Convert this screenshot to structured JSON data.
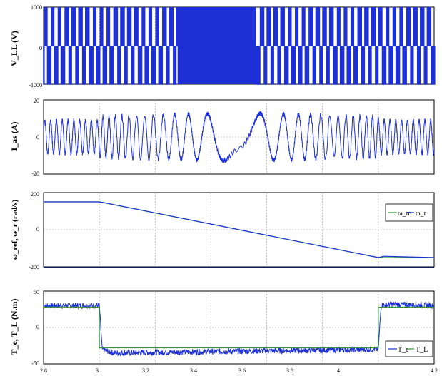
{
  "figure": {
    "colors": {
      "signal": "#1d2fd6",
      "reference": "#2e9a3a",
      "grid": "#9a9a9a",
      "frame": "#000000"
    }
  },
  "chart_data": [
    {
      "type": "line",
      "ylabel": "V_LL (V)",
      "ylim": [
        -1000,
        1000
      ],
      "yticks": [
        "1000",
        "0",
        "-1000"
      ],
      "xlim": [
        2.8,
        4.2
      ],
      "grid": true,
      "series": [
        {
          "description": "PWM line-to-line voltage, switching between -1000 and +1000 V; dense switching band around t=3.3-3.55 s"
        }
      ]
    },
    {
      "type": "line",
      "ylabel": "I_as (A)",
      "ylim": [
        -20,
        20
      ],
      "yticks": [
        "20",
        "0",
        "-20"
      ],
      "xlim": [
        2.8,
        4.2
      ],
      "grid": true,
      "series": [
        {
          "segments": [
            {
              "t": [
                2.8,
                3.0
              ],
              "amplitude": 9,
              "freq": 48
            },
            {
              "t": [
                3.0,
                3.5
              ],
              "amplitude_from": 11,
              "amplitude_to": 13,
              "freq_from": 48,
              "freq_to": 0
            },
            {
              "t": [
                3.5,
                4.0
              ],
              "amplitude_from": 13,
              "amplitude_to": 11,
              "freq_from": 0,
              "freq_to": 48
            },
            {
              "t": [
                4.0,
                4.2
              ],
              "amplitude": 9,
              "freq": 48
            }
          ]
        }
      ]
    },
    {
      "type": "line",
      "ylabel": "ω_ref, ω_r (rad/s)",
      "ylim": [
        -200,
        200
      ],
      "yticks": [
        "200",
        "0",
        "-200"
      ],
      "xlim": [
        2.8,
        4.2
      ],
      "grid": true,
      "legend": [
        "ω_m",
        "ω_r"
      ],
      "legend_position": "right",
      "series": [
        {
          "name": "ω_m",
          "x": [
            2.8,
            3.0,
            4.0,
            4.2
          ],
          "y": [
            150,
            150,
            -150,
            -150
          ]
        },
        {
          "name": "ω_r",
          "x": [
            2.8,
            3.0,
            3.02,
            4.0,
            4.02,
            4.2
          ],
          "y": [
            150,
            150,
            145,
            -150,
            -143,
            -150
          ]
        }
      ]
    },
    {
      "type": "line",
      "ylabel": "T_e, T_L (N.m)",
      "ylim": [
        -50,
        50
      ],
      "yticks": [
        "50",
        "0",
        "-50"
      ],
      "xlim": [
        2.8,
        4.2
      ],
      "xticks": [
        "2.8",
        "3",
        "3.2",
        "3.4",
        "3.6",
        "3.8",
        "4",
        "4.2"
      ],
      "grid": true,
      "legend": [
        "T_e",
        "T_L"
      ],
      "legend_position": "bottom-right",
      "series": [
        {
          "name": "T_e",
          "x": [
            2.8,
            3.0,
            3.01,
            3.05,
            4.0,
            4.01,
            4.05,
            4.2
          ],
          "y": [
            30,
            30,
            -30,
            -35,
            -30,
            30,
            32,
            30
          ],
          "ripple": 4
        },
        {
          "name": "T_L",
          "x": [
            2.8,
            3.0,
            3.0,
            4.0,
            4.0,
            4.2
          ],
          "y": [
            28,
            28,
            -28,
            -28,
            28,
            28
          ]
        }
      ]
    }
  ]
}
